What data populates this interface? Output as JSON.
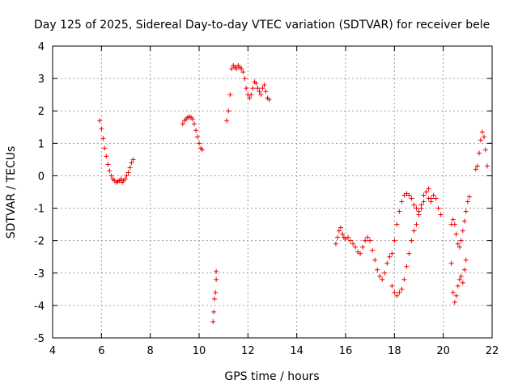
{
  "chart_data": {
    "type": "scatter",
    "title": "Day 125 of 2025, Sidereal Day-to-day VTEC variation (SDTVAR) for receiver bele",
    "xlabel": "GPS time / hours",
    "ylabel": "SDTVAR / TECUs",
    "xlim": [
      4,
      22
    ],
    "ylim": [
      -5,
      4
    ],
    "xticks": [
      4,
      6,
      8,
      10,
      12,
      14,
      16,
      18,
      20,
      22
    ],
    "yticks": [
      -5,
      -4,
      -3,
      -2,
      -1,
      0,
      1,
      2,
      3,
      4
    ],
    "grid": true,
    "marker": "+",
    "color": "#ee0000",
    "series": [
      {
        "name": "SDTVAR",
        "x": [
          5.93,
          6.0,
          6.07,
          6.13,
          6.2,
          6.27,
          6.33,
          6.4,
          6.47,
          6.53,
          6.6,
          6.67,
          6.73,
          6.8,
          6.85,
          6.9,
          6.97,
          7.03,
          7.1,
          7.17,
          7.23,
          7.3,
          9.33,
          9.4,
          9.47,
          9.53,
          9.6,
          9.67,
          9.73,
          9.8,
          9.87,
          9.93,
          10.0,
          10.07,
          10.13,
          10.57,
          10.6,
          10.63,
          10.67,
          10.7,
          10.7,
          11.13,
          11.2,
          11.27,
          11.33,
          11.4,
          11.47,
          11.53,
          11.6,
          11.67,
          11.73,
          11.8,
          11.87,
          11.93,
          12.0,
          12.07,
          12.13,
          12.2,
          12.27,
          12.33,
          12.4,
          12.47,
          12.53,
          12.6,
          12.67,
          12.73,
          12.8,
          12.87,
          15.6,
          15.67,
          15.73,
          15.8,
          15.87,
          15.93,
          16.0,
          16.1,
          16.2,
          16.3,
          16.4,
          16.5,
          16.6,
          16.7,
          16.8,
          16.9,
          17.0,
          17.1,
          17.2,
          17.3,
          17.4,
          17.5,
          17.6,
          17.7,
          17.8,
          17.9,
          18.0,
          18.1,
          18.2,
          18.3,
          18.4,
          18.5,
          18.6,
          18.7,
          18.8,
          18.9,
          19.0,
          19.1,
          19.2,
          19.3,
          19.4,
          19.5,
          19.6,
          19.7,
          19.8,
          19.9,
          17.9,
          18.0,
          18.1,
          18.2,
          18.3,
          18.4,
          18.5,
          18.6,
          18.7,
          18.8,
          18.9,
          19.0,
          19.1,
          19.2,
          19.3,
          19.4,
          19.5,
          20.33,
          20.4,
          20.47,
          20.53,
          20.6,
          20.67,
          20.73,
          20.8,
          20.87,
          20.93,
          21.0,
          21.07,
          20.33,
          20.4,
          20.47,
          20.53,
          20.6,
          20.67,
          20.73,
          20.8,
          20.87,
          20.93,
          21.33,
          21.4,
          21.47,
          21.53,
          21.6,
          21.67,
          21.73,
          21.8
        ],
        "y": [
          1.7,
          1.45,
          1.15,
          0.85,
          0.6,
          0.35,
          0.15,
          0.0,
          -0.1,
          -0.15,
          -0.2,
          -0.18,
          -0.15,
          -0.1,
          -0.2,
          -0.15,
          -0.1,
          0.0,
          0.1,
          0.25,
          0.4,
          0.5,
          1.6,
          1.7,
          1.75,
          1.8,
          1.82,
          1.8,
          1.75,
          1.6,
          1.4,
          1.2,
          1.0,
          0.85,
          0.8,
          -4.5,
          -4.2,
          -3.8,
          -3.6,
          -3.2,
          -2.95,
          1.7,
          2.0,
          2.5,
          3.3,
          3.4,
          3.35,
          3.3,
          3.4,
          3.35,
          3.3,
          3.2,
          3.0,
          2.7,
          2.5,
          2.4,
          2.5,
          2.7,
          2.9,
          2.85,
          2.7,
          2.6,
          2.5,
          2.7,
          2.8,
          2.6,
          2.4,
          2.35,
          -2.1,
          -1.9,
          -1.7,
          -1.6,
          -1.8,
          -1.9,
          -1.95,
          -1.9,
          -2.0,
          -2.1,
          -2.2,
          -2.35,
          -2.4,
          -2.2,
          -2.0,
          -1.9,
          -2.0,
          -2.3,
          -2.6,
          -2.9,
          -3.1,
          -3.2,
          -3.0,
          -2.7,
          -2.5,
          -2.4,
          -2.0,
          -1.5,
          -1.1,
          -0.8,
          -0.6,
          -0.55,
          -0.6,
          -0.7,
          -0.9,
          -1.0,
          -1.1,
          -0.9,
          -0.6,
          -0.5,
          -0.7,
          -0.8,
          -0.6,
          -0.7,
          -1.0,
          -1.2,
          -3.4,
          -3.6,
          -3.7,
          -3.6,
          -3.5,
          -3.2,
          -2.8,
          -2.4,
          -2.0,
          -1.7,
          -1.5,
          -1.2,
          -1.0,
          -0.8,
          -0.5,
          -0.4,
          -0.7,
          -1.5,
          -1.35,
          -1.5,
          -1.8,
          -2.1,
          -2.2,
          -2.0,
          -1.7,
          -1.4,
          -1.1,
          -0.8,
          -0.65,
          -2.7,
          -3.6,
          -3.9,
          -3.7,
          -3.4,
          -3.2,
          -3.1,
          -3.3,
          -2.9,
          -2.6,
          0.2,
          0.3,
          0.7,
          1.1,
          1.35,
          1.2,
          0.8,
          0.3
        ]
      }
    ]
  }
}
